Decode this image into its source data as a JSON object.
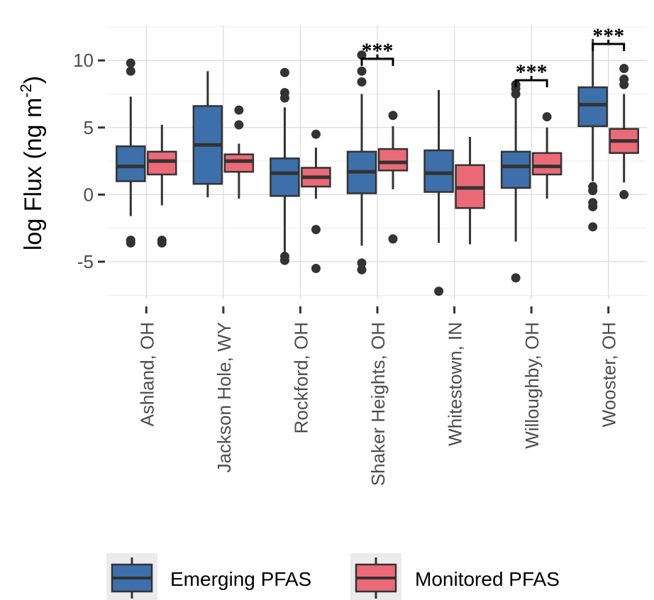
{
  "chart_data": {
    "type": "box",
    "ylabel": "log Flux (ng m",
    "ylabel_superscript": "-2",
    "ylabel_close": ")",
    "ylim": [
      -7.8,
      12.6
    ],
    "yticks": [
      -5,
      0,
      5,
      10
    ],
    "ytick_labels": [
      "-5",
      "0",
      "5",
      "10"
    ],
    "grid": true,
    "categories": [
      "Ashland, OH",
      "Jackson Hole, WY",
      "Rockford, OH",
      "Shaker Heights, OH",
      "Whitestown, IN",
      "Willoughby, OH",
      "Wooster, OH"
    ],
    "series": [
      {
        "name": "Emerging PFAS",
        "color": "#3d6faa",
        "boxes": [
          {
            "q1": 1.0,
            "median": 2.1,
            "q3": 3.6,
            "whisker_low": -1.6,
            "whisker_high": 7.3,
            "outliers": [
              9.8,
              9.2,
              -3.4,
              -3.6
            ]
          },
          {
            "q1": 0.8,
            "median": 3.7,
            "q3": 6.6,
            "whisker_low": -0.2,
            "whisker_high": 9.2,
            "outliers": []
          },
          {
            "q1": -0.1,
            "median": 1.6,
            "q3": 2.7,
            "whisker_low": -4.3,
            "whisker_high": 6.5,
            "outliers": [
              9.1,
              7.6,
              7.2,
              -4.6,
              -4.9
            ]
          },
          {
            "q1": 0.1,
            "median": 1.7,
            "q3": 3.2,
            "whisker_low": -3.8,
            "whisker_high": 7.5,
            "outliers": [
              10.4,
              9.2,
              8.4,
              -5.1,
              -5.6
            ]
          },
          {
            "q1": 0.2,
            "median": 1.6,
            "q3": 3.3,
            "whisker_low": -3.6,
            "whisker_high": 7.8,
            "outliers": [
              -7.2
            ]
          },
          {
            "q1": 0.5,
            "median": 2.1,
            "q3": 3.2,
            "whisker_low": -3.5,
            "whisker_high": 7.2,
            "outliers": [
              8.2,
              7.9,
              7.5,
              -6.2
            ]
          },
          {
            "q1": 5.1,
            "median": 6.7,
            "q3": 8.0,
            "whisker_low": 1.0,
            "whisker_high": 11.6,
            "outliers": [
              0.6,
              0.3,
              -0.6,
              -0.9,
              -2.4
            ]
          }
        ]
      },
      {
        "name": "Monitored PFAS",
        "color": "#ec6a77",
        "boxes": [
          {
            "q1": 1.5,
            "median": 2.5,
            "q3": 3.2,
            "whisker_low": -0.8,
            "whisker_high": 5.2,
            "outliers": [
              -3.4,
              -3.6
            ]
          },
          {
            "q1": 1.7,
            "median": 2.5,
            "q3": 3.0,
            "whisker_low": -0.3,
            "whisker_high": 3.8,
            "outliers": [
              6.3,
              5.2
            ]
          },
          {
            "q1": 0.6,
            "median": 1.3,
            "q3": 2.0,
            "whisker_low": -0.3,
            "whisker_high": 3.5,
            "outliers": [
              4.5,
              -2.6,
              -5.5
            ]
          },
          {
            "q1": 1.8,
            "median": 2.4,
            "q3": 3.4,
            "whisker_low": 0.4,
            "whisker_high": 5.1,
            "outliers": [
              5.9,
              -3.3
            ]
          },
          {
            "q1": -1.0,
            "median": 0.5,
            "q3": 2.2,
            "whisker_low": -3.7,
            "whisker_high": 4.3,
            "outliers": []
          },
          {
            "q1": 1.5,
            "median": 2.1,
            "q3": 3.1,
            "whisker_low": -0.3,
            "whisker_high": 5.0,
            "outliers": [
              5.8
            ]
          },
          {
            "q1": 3.1,
            "median": 4.0,
            "q3": 4.9,
            "whisker_low": 0.9,
            "whisker_high": 7.5,
            "outliers": [
              9.4,
              8.6,
              8.2,
              0.0
            ]
          }
        ]
      }
    ],
    "significance": [
      {
        "category_index": 3,
        "label": "***",
        "y": 11.5
      },
      {
        "category_index": 5,
        "label": "***",
        "y": 9.9
      },
      {
        "category_index": 6,
        "label": "***",
        "y": 12.6
      }
    ],
    "legend_position": "bottom"
  }
}
